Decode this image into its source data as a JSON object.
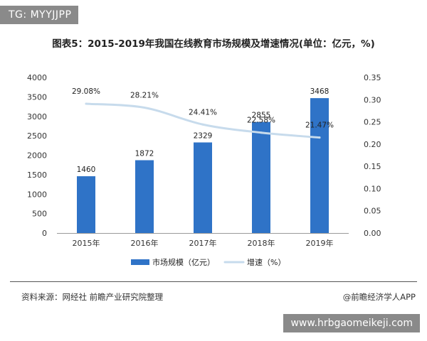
{
  "top_tag": "TG: MYYJJPP",
  "bottom_tag": "www.hrbgaomeikeji.com",
  "footer": {
    "source": "资料来源：网经社 前瞻产业研究院整理",
    "brand": "@前瞻经济学人APP"
  },
  "colors": {
    "bar": "#2f73c7",
    "line": "#c7dbec",
    "axis_text": "#333333"
  },
  "chart_data": {
    "type": "bar",
    "title": "图表5：2015-2019年我国在线教育市场规模及增速情况(单位：亿元，%)",
    "categories": [
      "2015年",
      "2016年",
      "2017年",
      "2018年",
      "2019年"
    ],
    "series": [
      {
        "name": "市场规模（亿元）",
        "type": "bar",
        "axis": "left",
        "values": [
          1460,
          1872,
          2329,
          2855,
          3468
        ],
        "labels": [
          "1460",
          "1872",
          "2329",
          "2855",
          "3468"
        ]
      },
      {
        "name": "增速（%）",
        "type": "line",
        "axis": "right",
        "values": [
          0.2908,
          0.2821,
          0.2441,
          0.2258,
          0.2147
        ],
        "labels": [
          "29.08%",
          "28.21%",
          "24.41%",
          "22.58%",
          "21.47%"
        ]
      }
    ],
    "y_left": {
      "ylim": [
        0,
        4000
      ],
      "ticks": [
        "0",
        "500",
        "1000",
        "1500",
        "2000",
        "2500",
        "3000",
        "3500",
        "4000"
      ]
    },
    "y_right": {
      "ylim": [
        0,
        0.35
      ],
      "ticks": [
        "0.00",
        "0.05",
        "0.10",
        "0.15",
        "0.20",
        "0.25",
        "0.30",
        "0.35"
      ]
    },
    "grid": false,
    "legend_position": "bottom-center"
  }
}
